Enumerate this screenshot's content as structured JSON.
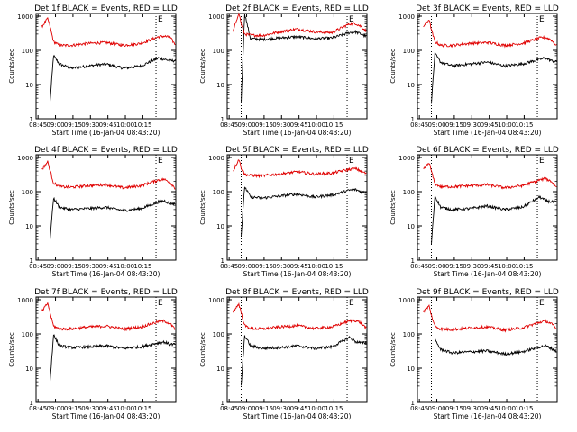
{
  "colors": {
    "events": "#000000",
    "lld": "#e00000",
    "axis": "#000000"
  },
  "chart_data": [
    {
      "type": "line",
      "title": "Det 1f BLACK = Events, RED = LLD",
      "xlabel": "Start Time (16-Jan-04 08:43:20)",
      "ylabel": "Counts/sec",
      "xticks": [
        "08:45",
        "09:00",
        "09:15",
        "09:30",
        "09:45",
        "10:00",
        "10:15"
      ],
      "yticks": [
        "1",
        "10",
        "100",
        "1000"
      ],
      "ylim": [
        1,
        1200
      ],
      "yscale": "log",
      "marker_E": "E",
      "x_minutes": [
        0,
        5,
        10,
        12,
        15,
        20,
        30,
        45,
        60,
        75,
        90,
        105,
        110,
        115,
        120
      ],
      "series": [
        {
          "name": "Events",
          "values": [
            null,
            null,
            null,
            3,
            70,
            40,
            30,
            35,
            40,
            30,
            35,
            60,
            55,
            50,
            50
          ]
        },
        {
          "name": "LLD",
          "values": [
            null,
            500,
            850,
            500,
            180,
            140,
            140,
            160,
            170,
            140,
            160,
            250,
            260,
            240,
            140
          ]
        }
      ],
      "vlines_minutes": [
        12,
        103
      ]
    },
    {
      "type": "line",
      "title": "Det 2f BLACK = Events, RED = LLD",
      "xlabel": "Start Time (16-Jan-04 08:43:20)",
      "ylabel": "Counts/sec",
      "xticks": [
        "08:45",
        "09:00",
        "09:15",
        "09:30",
        "09:45",
        "10:00",
        "10:15"
      ],
      "yticks": [
        "1",
        "10",
        "100",
        "1000"
      ],
      "ylim": [
        1,
        1200
      ],
      "yscale": "log",
      "marker_E": "E",
      "x_minutes": [
        0,
        5,
        10,
        12,
        15,
        20,
        30,
        45,
        60,
        75,
        90,
        105,
        110,
        115,
        120
      ],
      "series": [
        {
          "name": "Events",
          "values": [
            null,
            null,
            null,
            3,
            1200,
            220,
            210,
            230,
            250,
            220,
            230,
            330,
            350,
            300,
            250
          ]
        },
        {
          "name": "LLD",
          "values": [
            null,
            350,
            1300,
            600,
            300,
            280,
            270,
            350,
            420,
            350,
            330,
            600,
            620,
            500,
            350
          ]
        }
      ],
      "vlines_minutes": [
        12,
        103
      ]
    },
    {
      "type": "line",
      "title": "Det 3f BLACK = Events, RED = LLD",
      "xlabel": "Start Time (16-Jan-04 08:43:20)",
      "ylabel": "Counts/sec",
      "xticks": [
        "08:45",
        "09:00",
        "09:15",
        "09:30",
        "09:45",
        "10:00",
        "10:15"
      ],
      "yticks": [
        "1",
        "10",
        "100",
        "1000"
      ],
      "ylim": [
        1,
        1200
      ],
      "yscale": "log",
      "marker_E": "E",
      "x_minutes": [
        0,
        5,
        10,
        12,
        15,
        20,
        30,
        45,
        60,
        75,
        90,
        105,
        110,
        115,
        120
      ],
      "series": [
        {
          "name": "Events",
          "values": [
            null,
            null,
            null,
            3,
            80,
            45,
            35,
            40,
            45,
            35,
            40,
            55,
            60,
            50,
            45
          ]
        },
        {
          "name": "LLD",
          "values": [
            null,
            500,
            800,
            400,
            180,
            140,
            140,
            160,
            170,
            140,
            160,
            230,
            240,
            200,
            130
          ]
        }
      ],
      "vlines_minutes": [
        12,
        103
      ]
    },
    {
      "type": "line",
      "title": "Det 4f BLACK = Events, RED = LLD",
      "xlabel": "Start Time (16-Jan-04 08:43:20)",
      "ylabel": "Counts/sec",
      "xticks": [
        "08:45",
        "09:00",
        "09:15",
        "09:30",
        "09:45",
        "10:00",
        "10:15"
      ],
      "yticks": [
        "1",
        "10",
        "100",
        "1000"
      ],
      "ylim": [
        1,
        1200
      ],
      "yscale": "log",
      "marker_E": "E",
      "x_minutes": [
        0,
        5,
        10,
        12,
        15,
        20,
        30,
        45,
        60,
        75,
        90,
        105,
        110,
        115,
        120
      ],
      "series": [
        {
          "name": "Events",
          "values": [
            null,
            null,
            null,
            4,
            65,
            35,
            30,
            32,
            35,
            28,
            32,
            50,
            55,
            45,
            45
          ]
        },
        {
          "name": "LLD",
          "values": [
            null,
            450,
            750,
            420,
            180,
            140,
            135,
            150,
            160,
            130,
            150,
            220,
            230,
            190,
            120
          ]
        }
      ],
      "vlines_minutes": [
        12,
        103
      ]
    },
    {
      "type": "line",
      "title": "Det 5f BLACK = Events, RED = LLD",
      "xlabel": "Start Time (16-Jan-04 08:43:20)",
      "ylabel": "Counts/sec",
      "xticks": [
        "08:45",
        "09:00",
        "09:15",
        "09:30",
        "09:45",
        "10:00",
        "10:15"
      ],
      "yticks": [
        "1",
        "10",
        "100",
        "1000"
      ],
      "ylim": [
        1,
        1200
      ],
      "yscale": "log",
      "marker_E": "E",
      "x_minutes": [
        0,
        5,
        10,
        12,
        15,
        20,
        30,
        45,
        60,
        75,
        90,
        105,
        110,
        115,
        120
      ],
      "series": [
        {
          "name": "Events",
          "values": [
            null,
            null,
            null,
            5,
            140,
            70,
            65,
            75,
            85,
            70,
            80,
            110,
            115,
            100,
            95
          ]
        },
        {
          "name": "LLD",
          "values": [
            null,
            400,
            900,
            500,
            320,
            300,
            290,
            330,
            380,
            330,
            350,
            450,
            470,
            400,
            330
          ]
        }
      ],
      "vlines_minutes": [
        12,
        103
      ]
    },
    {
      "type": "line",
      "title": "Det 6f BLACK = Events, RED = LLD",
      "xlabel": "Start Time (16-Jan-04 08:43:20)",
      "ylabel": "Counts/sec",
      "xticks": [
        "08:45",
        "09:00",
        "09:15",
        "09:30",
        "09:45",
        "10:00",
        "10:15"
      ],
      "yticks": [
        "1",
        "10",
        "100",
        "1000"
      ],
      "ylim": [
        1,
        1200
      ],
      "yscale": "log",
      "marker_E": "E",
      "x_minutes": [
        0,
        5,
        10,
        12,
        15,
        20,
        30,
        45,
        60,
        75,
        90,
        105,
        110,
        115,
        120
      ],
      "series": [
        {
          "name": "Events",
          "values": [
            null,
            null,
            null,
            3,
            75,
            35,
            30,
            32,
            38,
            30,
            35,
            70,
            55,
            50,
            50
          ]
        },
        {
          "name": "LLD",
          "values": [
            null,
            450,
            700,
            400,
            170,
            140,
            140,
            150,
            160,
            130,
            150,
            220,
            240,
            200,
            130
          ]
        }
      ],
      "vlines_minutes": [
        12,
        103
      ]
    },
    {
      "type": "line",
      "title": "Det 7f BLACK = Events, RED = LLD",
      "xlabel": "Start Time (16-Jan-04 08:43:20)",
      "ylabel": "Counts/sec",
      "xticks": [
        "08:45",
        "09:00",
        "09:15",
        "09:30",
        "09:45",
        "10:00",
        "10:15"
      ],
      "yticks": [
        "1",
        "10",
        "100",
        "1000"
      ],
      "ylim": [
        1,
        1200
      ],
      "yscale": "log",
      "marker_E": "E",
      "x_minutes": [
        0,
        5,
        10,
        12,
        15,
        20,
        30,
        45,
        60,
        75,
        90,
        105,
        110,
        115,
        120
      ],
      "series": [
        {
          "name": "Events",
          "values": [
            null,
            null,
            null,
            4,
            95,
            45,
            40,
            42,
            45,
            38,
            42,
            55,
            58,
            50,
            50
          ]
        },
        {
          "name": "LLD",
          "values": [
            null,
            450,
            800,
            420,
            170,
            140,
            140,
            160,
            170,
            140,
            160,
            230,
            240,
            200,
            130
          ]
        }
      ],
      "vlines_minutes": [
        12,
        103
      ]
    },
    {
      "type": "line",
      "title": "Det 8f BLACK = Events, RED = LLD",
      "xlabel": "Start Time (16-Jan-04 08:43:20)",
      "ylabel": "Counts/sec",
      "xticks": [
        "08:45",
        "09:00",
        "09:15",
        "09:30",
        "09:45",
        "10:00",
        "10:15"
      ],
      "yticks": [
        "1",
        "10",
        "100",
        "1000"
      ],
      "ylim": [
        1,
        1200
      ],
      "yscale": "log",
      "marker_E": "E",
      "x_minutes": [
        0,
        5,
        10,
        12,
        15,
        20,
        30,
        45,
        60,
        75,
        90,
        105,
        110,
        115,
        120
      ],
      "series": [
        {
          "name": "Events",
          "values": [
            null,
            null,
            null,
            3,
            90,
            45,
            38,
            40,
            45,
            38,
            42,
            80,
            60,
            55,
            55
          ]
        },
        {
          "name": "LLD",
          "values": [
            null,
            450,
            750,
            420,
            175,
            145,
            140,
            160,
            175,
            145,
            160,
            240,
            250,
            210,
            140
          ]
        }
      ],
      "vlines_minutes": [
        12,
        103
      ]
    },
    {
      "type": "line",
      "title": "Det 9f BLACK = Events, RED = LLD",
      "xlabel": "Start Time (16-Jan-04 08:43:20)",
      "ylabel": "Counts/sec",
      "xticks": [
        "08:45",
        "09:00",
        "09:15",
        "09:30",
        "09:45",
        "10:00",
        "10:15"
      ],
      "yticks": [
        "1",
        "10",
        "100",
        "1000"
      ],
      "ylim": [
        1,
        1200
      ],
      "yscale": "log",
      "marker_E": "E",
      "x_minutes": [
        0,
        5,
        10,
        12,
        15,
        20,
        30,
        45,
        60,
        75,
        90,
        105,
        110,
        115,
        120
      ],
      "series": [
        {
          "name": "Events",
          "values": [
            null,
            null,
            null,
            null,
            70,
            35,
            28,
            30,
            32,
            26,
            30,
            42,
            45,
            38,
            30
          ]
        },
        {
          "name": "LLD",
          "values": [
            null,
            450,
            650,
            350,
            170,
            140,
            135,
            150,
            160,
            130,
            150,
            220,
            240,
            200,
            130
          ]
        }
      ],
      "vlines_minutes": [
        12,
        103
      ]
    }
  ]
}
